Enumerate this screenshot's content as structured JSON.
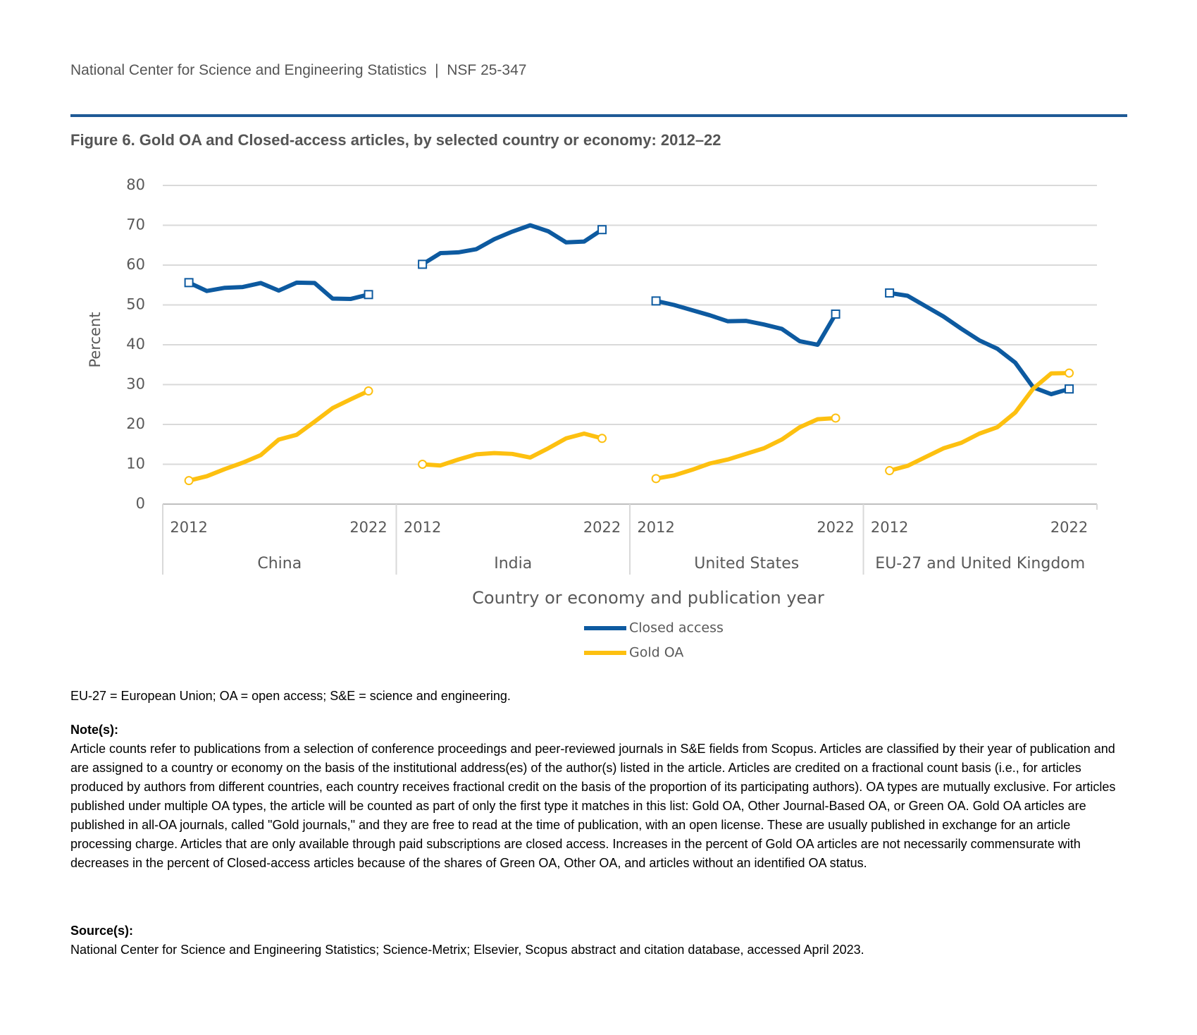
{
  "header": {
    "text": "National Center for Science and Engineering Statistics  |  NSF 25-347"
  },
  "chart_data": {
    "type": "line",
    "title": "Figure 6. Gold OA and Closed-access articles, by selected country or economy: 2012–22",
    "y_label": "Percent",
    "x_label": "Country or economy and publication year",
    "ylim": [
      0,
      80
    ],
    "yticks": [
      0,
      10,
      20,
      30,
      40,
      50,
      60,
      70,
      80
    ],
    "grid": true,
    "groups": [
      {
        "name": "China",
        "categories": [
          "2012",
          null,
          null,
          null,
          null,
          null,
          null,
          null,
          null,
          null,
          "2022"
        ]
      },
      {
        "name": "India",
        "categories": [
          "2012",
          null,
          null,
          null,
          null,
          null,
          null,
          null,
          null,
          null,
          "2022"
        ]
      },
      {
        "name": "United States",
        "categories": [
          "2012",
          null,
          null,
          null,
          null,
          null,
          null,
          null,
          null,
          null,
          "2022"
        ]
      },
      {
        "name": "EU-27 and United Kingdom",
        "categories": [
          "2012",
          null,
          null,
          null,
          null,
          null,
          null,
          null,
          null,
          null,
          "2022"
        ]
      }
    ],
    "series": [
      {
        "name": "Closed access",
        "color": "#0d5aa0",
        "marker": "square",
        "values": [
          [
            55.6,
            53.5,
            54.3,
            54.5,
            55.5,
            53.6,
            55.6,
            55.5,
            51.6,
            51.5,
            52.6
          ],
          [
            60.2,
            63.0,
            63.2,
            64.0,
            66.5,
            68.4,
            70.0,
            68.5,
            65.7,
            65.9,
            68.9
          ],
          [
            51.0,
            50.0,
            48.7,
            47.4,
            45.9,
            46.0,
            45.1,
            44.0,
            40.9,
            40.0,
            47.7
          ],
          [
            53.0,
            52.3,
            49.7,
            47.1,
            44.0,
            41.1,
            39.0,
            35.5,
            29.3,
            27.6,
            28.9
          ]
        ]
      },
      {
        "name": "Gold OA",
        "color": "#fdc010",
        "marker": "circle",
        "values": [
          [
            5.9,
            7.0,
            8.8,
            10.4,
            12.3,
            16.2,
            17.4,
            20.7,
            24.1,
            26.3,
            28.4
          ],
          [
            10.0,
            9.7,
            11.2,
            12.5,
            12.8,
            12.6,
            11.7,
            14.0,
            16.5,
            17.7,
            16.5
          ],
          [
            6.4,
            7.2,
            8.6,
            10.2,
            11.2,
            12.6,
            14.0,
            16.2,
            19.3,
            21.3,
            21.6
          ],
          [
            8.4,
            9.6,
            11.8,
            14.0,
            15.4,
            17.7,
            19.3,
            23.0,
            29.0,
            32.8,
            32.9
          ]
        ]
      }
    ]
  },
  "footnotes": {
    "abbreviations": "EU-27 = European Union; OA = open access; S&E = science and engineering.",
    "notes_heading": "Note(s):",
    "notes": "Article counts refer to publications from a selection of conference proceedings and peer-reviewed journals in S&E fields from Scopus. Articles are classified by their year of publication and are assigned to a country or economy on the basis of the institutional address(es) of the author(s) listed in the article. Articles are credited on a fractional count basis (i.e., for articles produced by authors from different countries, each country receives fractional credit on the basis of the proportion of its participating authors). OA types are mutually exclusive. For articles published under multiple OA types, the article will be counted as part of only the first type it matches in this list: Gold OA, Other Journal-Based OA, or Green OA. Gold OA articles are published in all-OA journals, called \"Gold journals,\" and they are free to read at the time of publication, with an open license. These are usually published in exchange for an article processing charge. Articles that are only available through paid subscriptions are closed access. Increases in the percent of Gold OA articles are not necessarily commensurate with decreases in the percent of Closed-access articles because of the shares of Green OA, Other OA, and articles without an identified OA status.",
    "source_heading": "Source(s):",
    "source": "National Center for Science and Engineering Statistics; Science-Metrix; Elsevier, Scopus abstract and citation database, accessed April 2023."
  }
}
